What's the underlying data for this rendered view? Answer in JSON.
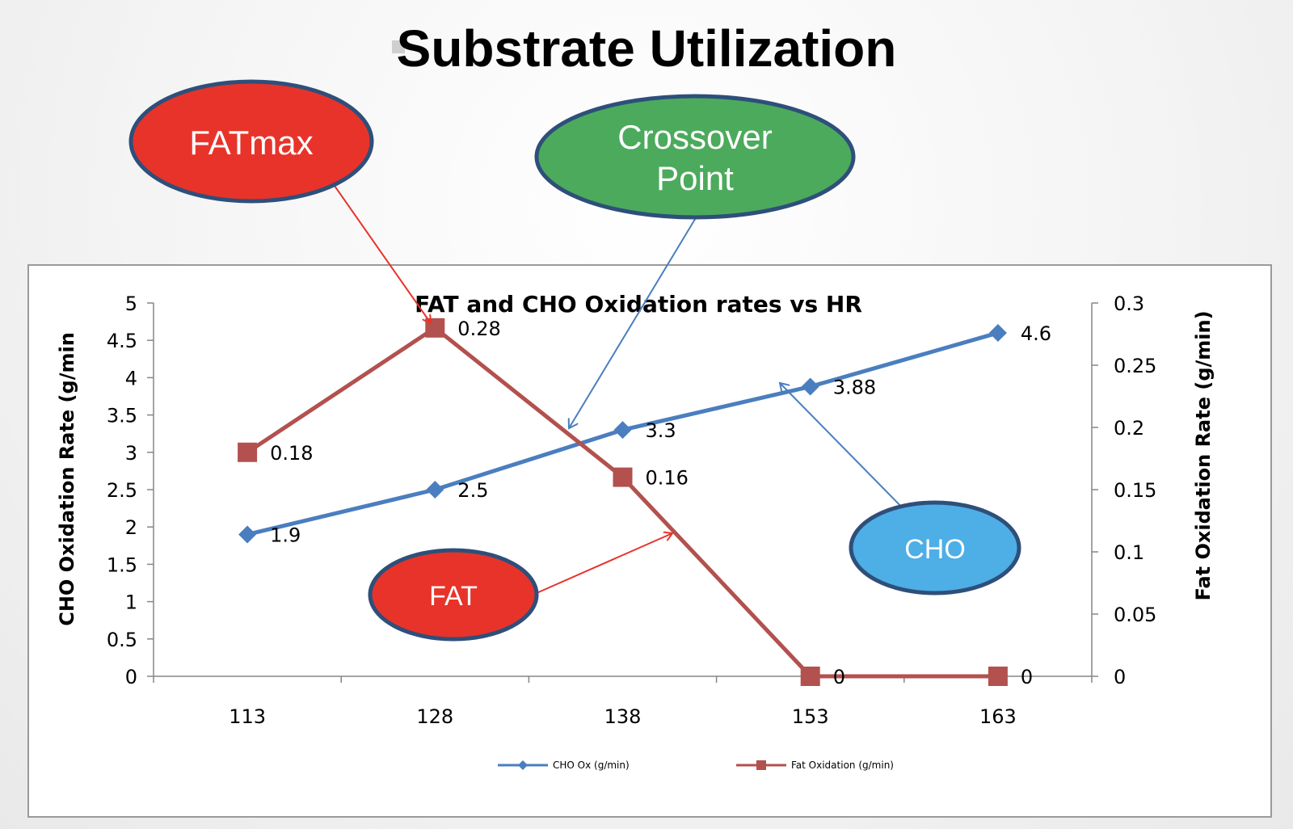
{
  "slide": {
    "title": "Substrate Utilization",
    "callouts": {
      "fatmax": "FATmax",
      "crossover_line1": "Crossover",
      "crossover_line2": "Point",
      "fat": "FAT",
      "cho": "CHO"
    }
  },
  "colors": {
    "cho_series": "#4a7ebf",
    "fat_series": "#b2514e",
    "callout_red": "#e8332a",
    "callout_green": "#4caa5c",
    "callout_blue": "#4eaee6",
    "callout_border": "#2e4f7a",
    "arrow_red": "#e8332a",
    "arrow_blue": "#4a7ebf"
  },
  "chart_data": {
    "type": "line",
    "title": "FAT and CHO Oxidation rates vs HR",
    "categories": [
      "113",
      "128",
      "138",
      "153",
      "163"
    ],
    "xlabel": "",
    "ylabel": "CHO Oxidation Rate (g/min",
    "y2label": "Fat Oxidation Rate (g/min)",
    "ylim": [
      0,
      5
    ],
    "y2lim": [
      0,
      0.3
    ],
    "yticks": [
      "0",
      "0.5",
      "1",
      "1.5",
      "2",
      "2.5",
      "3",
      "3.5",
      "4",
      "4.5",
      "5"
    ],
    "y2ticks": [
      "0",
      "0.05",
      "0.1",
      "0.15",
      "0.2",
      "0.25",
      "0.3"
    ],
    "series": [
      {
        "name": "CHO Ox (g/min)",
        "axis": "left",
        "marker": "diamond",
        "values": [
          1.9,
          2.5,
          3.3,
          3.88,
          4.6
        ],
        "labels": [
          "1.9",
          "2.5",
          "3.3",
          "3.88",
          "4.6"
        ]
      },
      {
        "name": "Fat Oxidation (g/min)",
        "axis": "right",
        "marker": "square",
        "values": [
          0.18,
          0.28,
          0.16,
          0,
          0
        ],
        "labels": [
          "0.18",
          "0.28",
          "0.16",
          "0",
          "0"
        ]
      }
    ],
    "legend_position": "bottom"
  }
}
